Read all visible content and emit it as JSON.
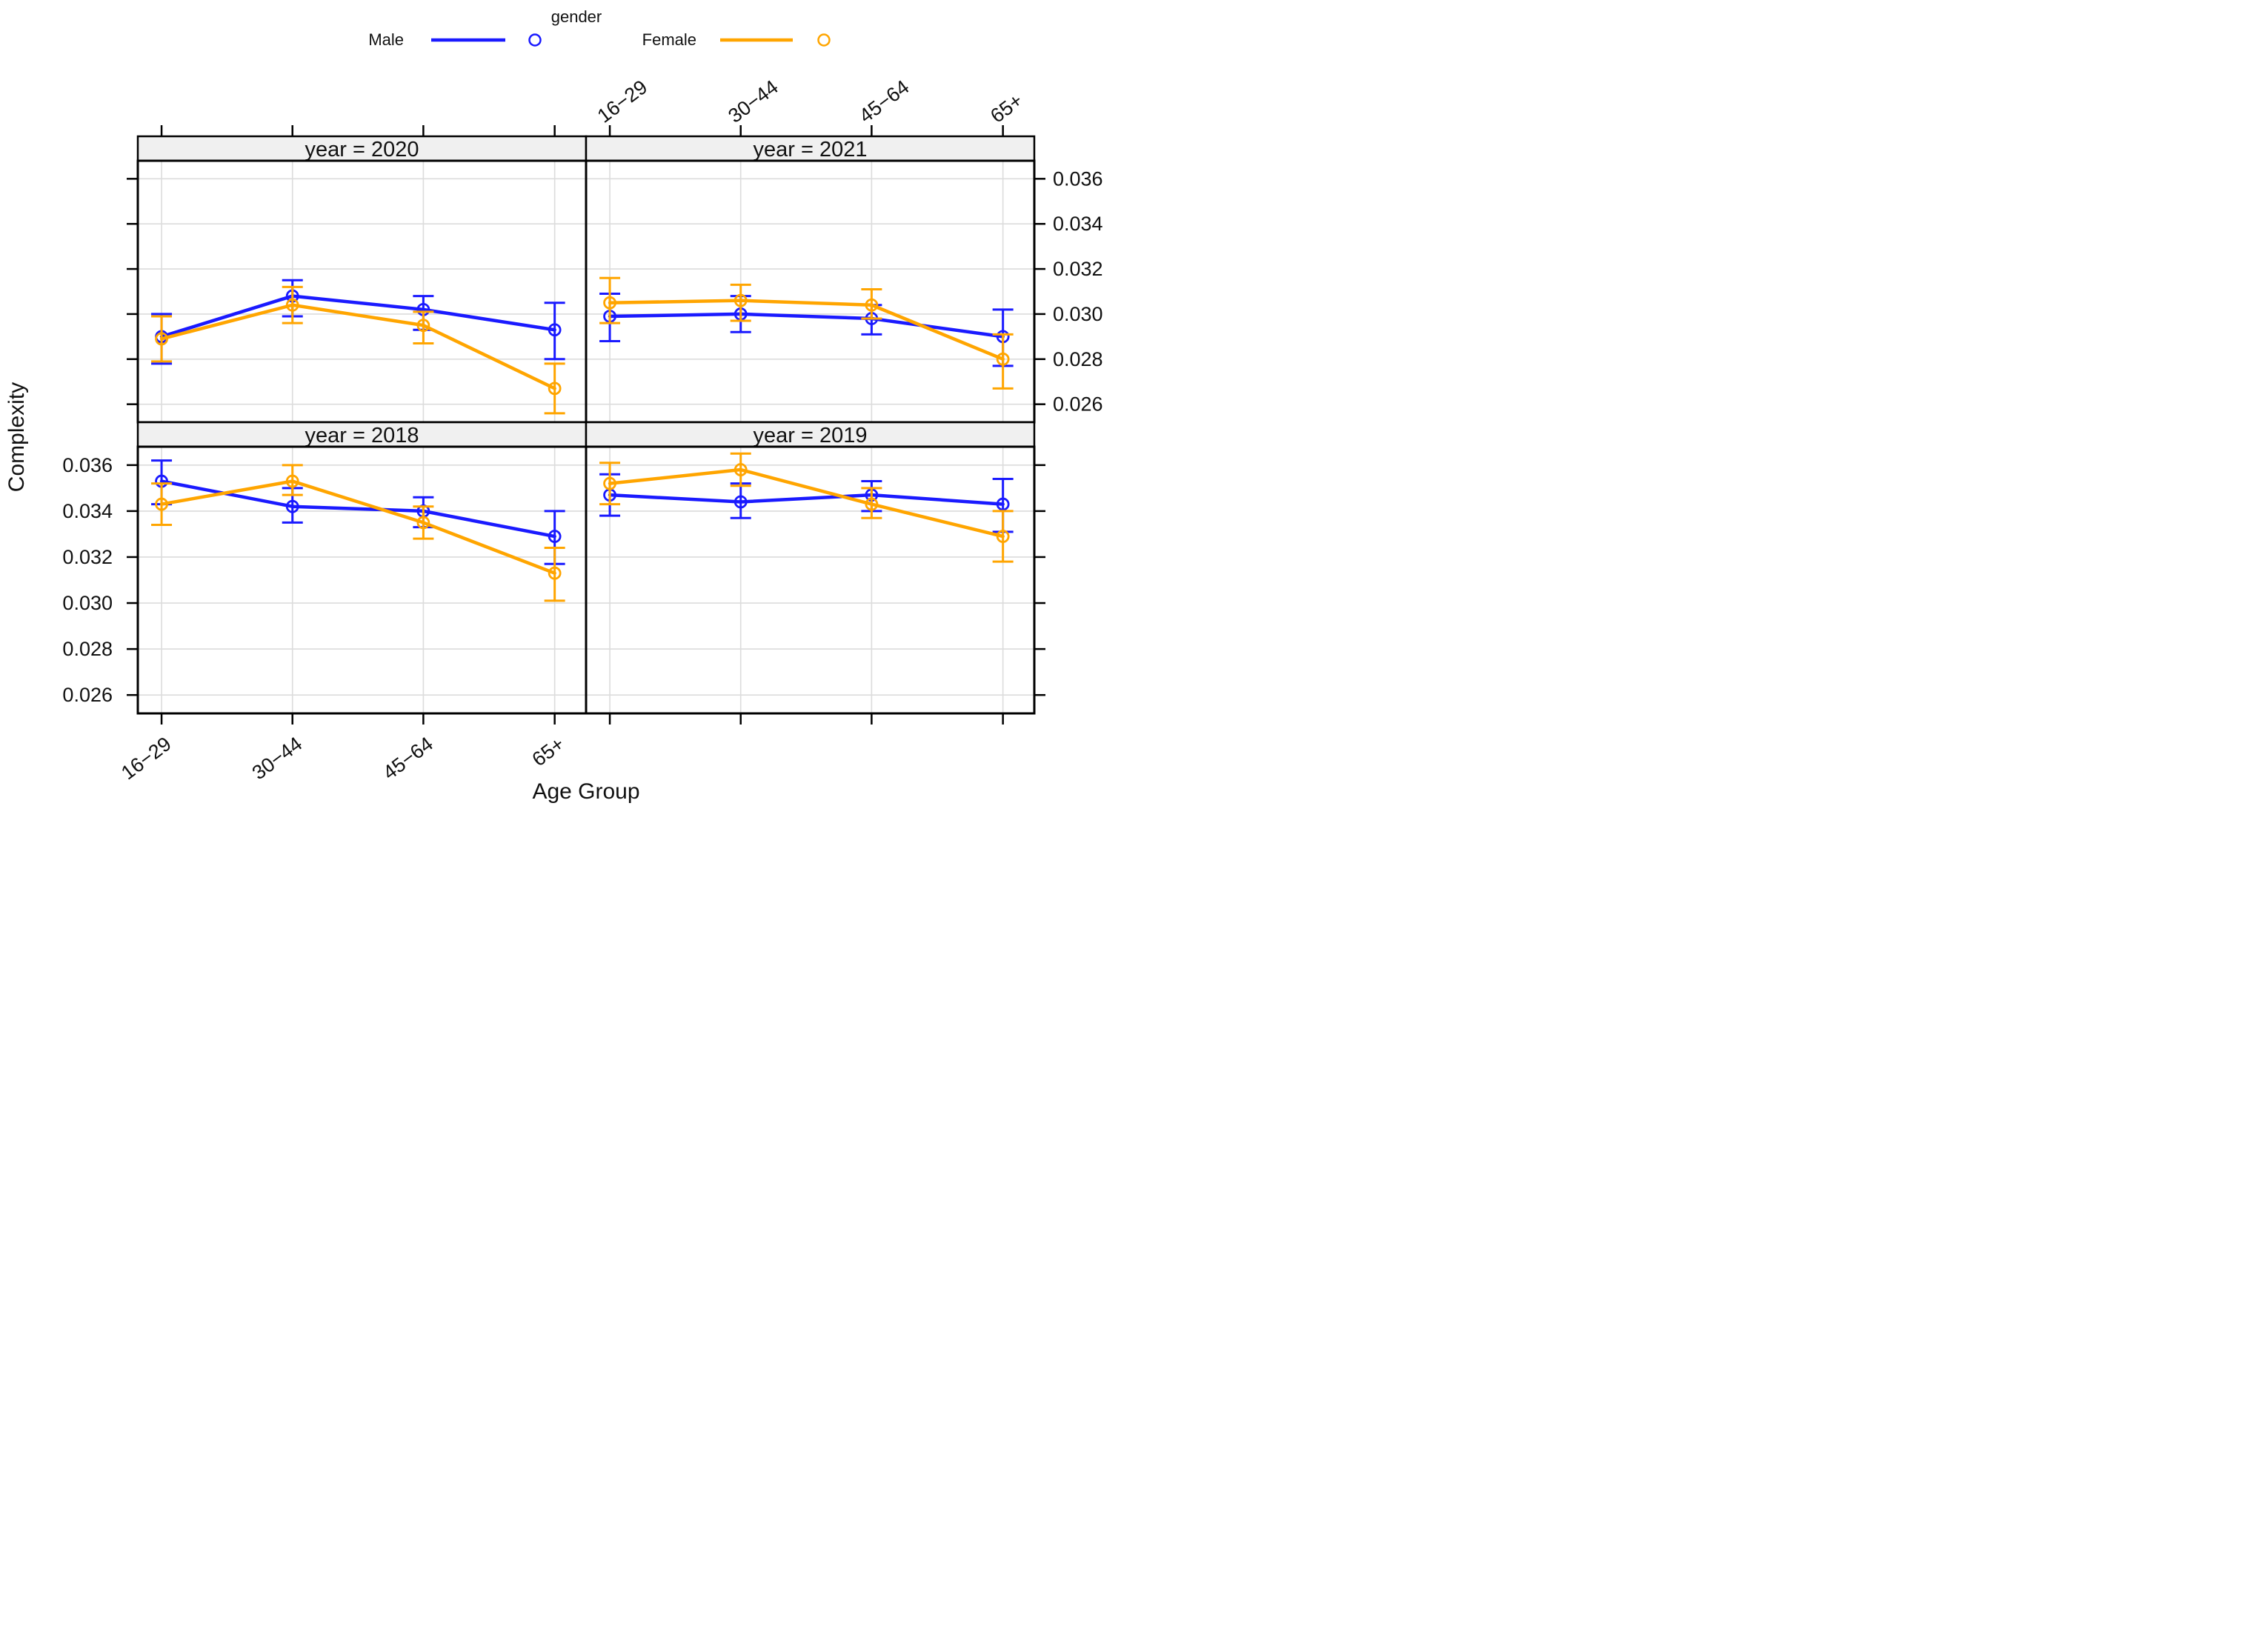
{
  "legend": {
    "title": "gender",
    "items": [
      {
        "label": "Male",
        "color": "#1a1aff"
      },
      {
        "label": "Female",
        "color": "#ffa500"
      }
    ]
  },
  "axes": {
    "x_title": "Age Group",
    "y_title": "Complexity"
  },
  "colors": {
    "male": "#1a1aff",
    "female": "#ffa500",
    "strip_bg": "#f0f0f0",
    "grid_line": "#dcdcdc",
    "frame": "#000000",
    "text": "#111111",
    "background": "#ffffff"
  },
  "chart_data": {
    "type": "line",
    "subtype": "trellis-pointrange-with-error-bars",
    "facet_variable": "year",
    "title": "",
    "xlabel": "Age Group",
    "ylabel": "Complexity",
    "categories": [
      "16−29",
      "30−44",
      "45−64",
      "65+"
    ],
    "ylim": [
      0.0252,
      0.0368
    ],
    "yticks": [
      0.026,
      0.028,
      0.03,
      0.032,
      0.034,
      0.036
    ],
    "ytick_labels": [
      "0.026",
      "0.028",
      "0.030",
      "0.032",
      "0.034",
      "0.036"
    ],
    "grid": true,
    "legend_position": "top-center",
    "panels": [
      {
        "label": "year = 2020",
        "row": 0,
        "col": 0,
        "series": [
          {
            "name": "Male",
            "color": "#1a1aff",
            "y": [
              0.029,
              0.0308,
              0.0302,
              0.0293
            ],
            "lo": [
              0.0278,
              0.0299,
              0.0293,
              0.028
            ],
            "hi": [
              0.03,
              0.0315,
              0.0308,
              0.0305
            ]
          },
          {
            "name": "Female",
            "color": "#ffa500",
            "y": [
              0.0289,
              0.0304,
              0.0295,
              0.0267
            ],
            "lo": [
              0.0279,
              0.0296,
              0.0287,
              0.0256
            ],
            "hi": [
              0.0299,
              0.0312,
              0.0301,
              0.0278
            ]
          }
        ]
      },
      {
        "label": "year = 2021",
        "row": 0,
        "col": 1,
        "series": [
          {
            "name": "Male",
            "color": "#1a1aff",
            "y": [
              0.0299,
              0.03,
              0.0298,
              0.029
            ],
            "lo": [
              0.0288,
              0.0292,
              0.0291,
              0.0277
            ],
            "hi": [
              0.0309,
              0.0308,
              0.0304,
              0.0302
            ]
          },
          {
            "name": "Female",
            "color": "#ffa500",
            "y": [
              0.0305,
              0.0306,
              0.0304,
              0.028
            ],
            "lo": [
              0.0296,
              0.0297,
              0.0298,
              0.0267
            ],
            "hi": [
              0.0316,
              0.0313,
              0.0311,
              0.0291
            ]
          }
        ]
      },
      {
        "label": "year = 2018",
        "row": 1,
        "col": 0,
        "series": [
          {
            "name": "Male",
            "color": "#1a1aff",
            "y": [
              0.0353,
              0.0342,
              0.034,
              0.0329
            ],
            "lo": [
              0.0343,
              0.0335,
              0.0333,
              0.0317
            ],
            "hi": [
              0.0362,
              0.035,
              0.0346,
              0.034
            ]
          },
          {
            "name": "Female",
            "color": "#ffa500",
            "y": [
              0.0343,
              0.0353,
              0.0335,
              0.0313
            ],
            "lo": [
              0.0334,
              0.0347,
              0.0328,
              0.0301
            ],
            "hi": [
              0.0352,
              0.036,
              0.0342,
              0.0324
            ]
          }
        ]
      },
      {
        "label": "year = 2019",
        "row": 1,
        "col": 1,
        "series": [
          {
            "name": "Male",
            "color": "#1a1aff",
            "y": [
              0.0347,
              0.0344,
              0.0347,
              0.0343
            ],
            "lo": [
              0.0338,
              0.0337,
              0.034,
              0.0331
            ],
            "hi": [
              0.0356,
              0.0352,
              0.0353,
              0.0354
            ]
          },
          {
            "name": "Female",
            "color": "#ffa500",
            "y": [
              0.0352,
              0.0358,
              0.0343,
              0.0329
            ],
            "lo": [
              0.0343,
              0.0351,
              0.0337,
              0.0318
            ],
            "hi": [
              0.0361,
              0.0365,
              0.035,
              0.034
            ]
          }
        ]
      }
    ]
  }
}
